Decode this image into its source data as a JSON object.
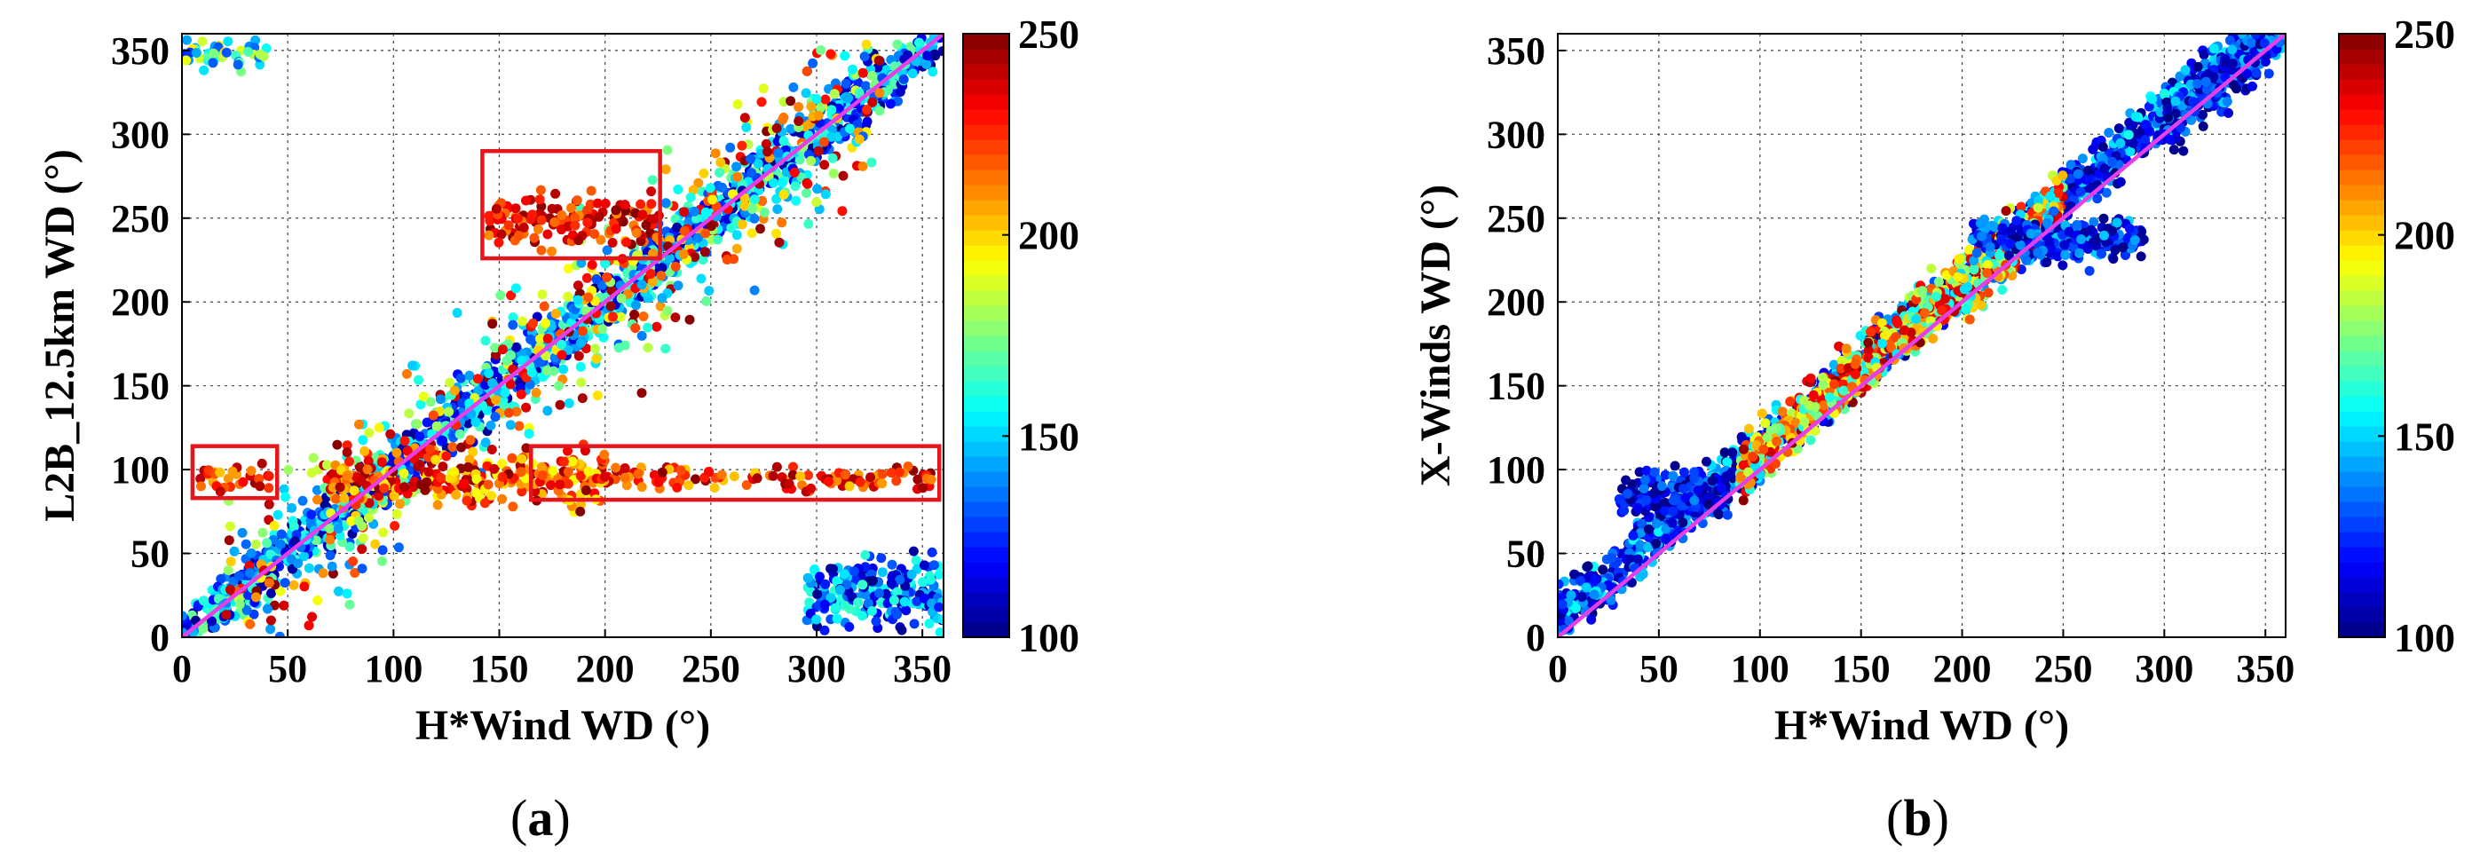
{
  "chart_data": [
    {
      "type": "scatter",
      "panel_label": "a",
      "xlabel": "H*Wind WD (°)",
      "ylabel": "L2B_12.5km WD (°)",
      "xlim": [
        0,
        360
      ],
      "ylim": [
        0,
        360
      ],
      "xticks": [
        0,
        50,
        100,
        150,
        200,
        250,
        300,
        350
      ],
      "yticks": [
        0,
        50,
        100,
        150,
        200,
        250,
        300,
        350
      ],
      "grid": true,
      "colorbar": {
        "min": 100,
        "max": 250,
        "ticks": [
          100,
          150,
          200,
          250
        ],
        "colormap": "jet"
      },
      "reference_line": {
        "x": [
          0,
          360
        ],
        "y": [
          0,
          360
        ],
        "color": "#e83ee8"
      },
      "highlight_boxes": [
        {
          "x": [
            5,
            45
          ],
          "y": [
            83,
            114
          ],
          "color": "#e8141c"
        },
        {
          "x": [
            142,
            226
          ],
          "y": [
            226,
            290
          ],
          "color": "#e8141c"
        },
        {
          "x": [
            165,
            358
          ],
          "y": [
            82,
            114
          ],
          "color": "#e8141c"
        }
      ],
      "point_groups": [
        {
          "description": "dense diagonal band",
          "x_range": [
            0,
            360
          ],
          "offset": 0,
          "spread": 16,
          "color_range": [
            100,
            175
          ],
          "count": 1400
        },
        {
          "description": "scattered diagonal",
          "x_range": [
            20,
            330
          ],
          "offset": 0,
          "spread": 45,
          "color_range": [
            130,
            250
          ],
          "count": 650
        },
        {
          "description": "cluster near 100",
          "x_range": [
            170,
            355
          ],
          "y_center": 95,
          "spread": 6,
          "color_range": [
            200,
            250
          ],
          "count": 140
        },
        {
          "description": "cluster near 100 left",
          "x_range": [
            70,
            200
          ],
          "y_center": 95,
          "spread": 14,
          "color_range": [
            190,
            250
          ],
          "count": 260
        },
        {
          "description": "small cluster",
          "x_range": [
            8,
            42
          ],
          "y_center": 97,
          "spread": 8,
          "color_range": [
            200,
            250
          ],
          "count": 30
        },
        {
          "description": "upper cluster",
          "x_range": [
            145,
            225
          ],
          "y_center": 250,
          "spread": 14,
          "color_range": [
            210,
            250
          ],
          "count": 140
        },
        {
          "description": "low corner",
          "x_range": [
            295,
            360
          ],
          "y_center": 25,
          "spread": 20,
          "color_range": [
            100,
            165
          ],
          "count": 220
        },
        {
          "description": "top-left corner",
          "x_range": [
            0,
            40
          ],
          "y_center": 348,
          "spread": 8,
          "color_range": [
            120,
            200
          ],
          "count": 45
        }
      ]
    },
    {
      "type": "scatter",
      "panel_label": "b",
      "xlabel": "H*Wind WD (°)",
      "ylabel": "X-Winds WD (°)",
      "xlim": [
        0,
        360
      ],
      "ylim": [
        0,
        360
      ],
      "xticks": [
        0,
        50,
        100,
        150,
        200,
        250,
        300,
        350
      ],
      "yticks": [
        0,
        50,
        100,
        150,
        200,
        250,
        300,
        350
      ],
      "grid": true,
      "colorbar": {
        "min": 100,
        "max": 250,
        "ticks": [
          100,
          150,
          200,
          250
        ],
        "colormap": "jet"
      },
      "reference_line": {
        "x": [
          0,
          360
        ],
        "y": [
          0,
          360
        ],
        "color": "#e83ee8"
      },
      "highlight_boxes": [],
      "point_groups": [
        {
          "description": "main band",
          "x_range": [
            0,
            360
          ],
          "offset": 12,
          "spread": 14,
          "color_range": [
            100,
            160
          ],
          "count": 1500
        },
        {
          "description": "mid band colored",
          "x_range": [
            90,
            250
          ],
          "offset": 10,
          "spread": 16,
          "color_range": [
            150,
            250
          ],
          "count": 750
        },
        {
          "description": "upper plateau",
          "x_range": [
            205,
            290
          ],
          "y_center": 238,
          "spread": 12,
          "color_range": [
            100,
            150
          ],
          "count": 260
        },
        {
          "description": "lower plateau",
          "x_range": [
            30,
            85
          ],
          "y_center": 85,
          "spread": 12,
          "color_range": [
            100,
            140
          ],
          "count": 200
        },
        {
          "description": "upper right",
          "x_range": [
            300,
            360
          ],
          "offset": 5,
          "spread": 16,
          "color_range": [
            100,
            150
          ],
          "count": 260
        }
      ]
    }
  ]
}
